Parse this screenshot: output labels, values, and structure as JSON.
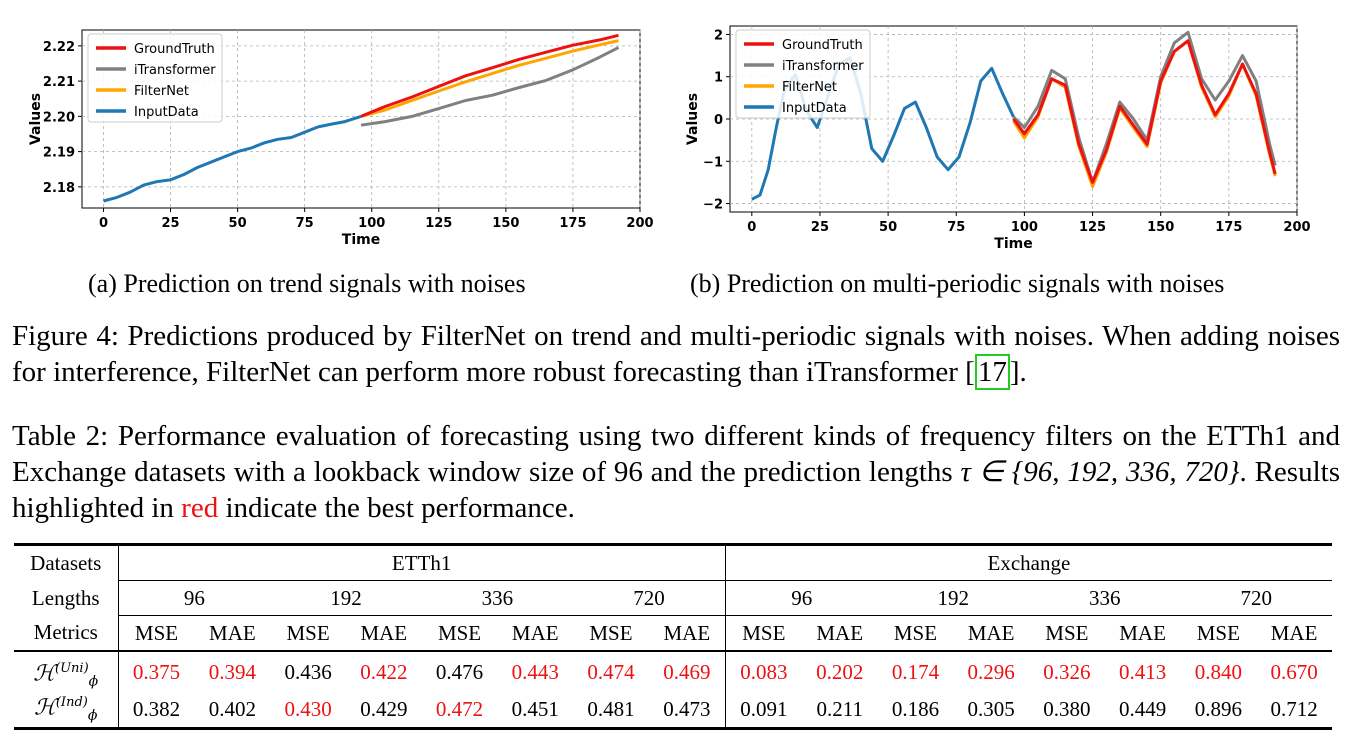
{
  "chart_data": [
    {
      "type": "line",
      "xlabel": "Time",
      "ylabel": "Values",
      "xlim": [
        -8,
        200
      ],
      "ylim": [
        2.174,
        2.2245
      ],
      "xticks": [
        "0",
        "25",
        "50",
        "75",
        "100",
        "125",
        "150",
        "175",
        "200"
      ],
      "yticks": [
        "2.18",
        "2.19",
        "2.20",
        "2.21",
        "2.22"
      ],
      "grid": true,
      "legend_position": "top-left",
      "series": [
        {
          "name": "GroundTruth",
          "color": "#ee1111",
          "x": [
            96,
            105,
            115,
            125,
            135,
            145,
            155,
            165,
            175,
            185,
            192
          ],
          "y": [
            2.2,
            2.2028,
            2.2055,
            2.2085,
            2.2115,
            2.2138,
            2.2162,
            2.2182,
            2.2202,
            2.2217,
            2.223
          ]
        },
        {
          "name": "iTransformer",
          "color": "#808080",
          "x": [
            96,
            105,
            115,
            125,
            135,
            145,
            155,
            165,
            175,
            185,
            192
          ],
          "y": [
            2.1975,
            2.1985,
            2.2,
            2.2022,
            2.2045,
            2.206,
            2.2082,
            2.2102,
            2.2132,
            2.2168,
            2.2195
          ]
        },
        {
          "name": "FilterNet",
          "color": "#ffa500",
          "x": [
            96,
            105,
            115,
            125,
            135,
            145,
            155,
            165,
            175,
            185,
            192
          ],
          "y": [
            2.2,
            2.2018,
            2.2045,
            2.2072,
            2.2098,
            2.2122,
            2.2145,
            2.2165,
            2.2185,
            2.2203,
            2.2215
          ]
        },
        {
          "name": "InputData",
          "color": "#1f77b4",
          "x": [
            0,
            5,
            10,
            15,
            20,
            25,
            30,
            35,
            40,
            45,
            50,
            55,
            60,
            65,
            70,
            75,
            80,
            85,
            90,
            96
          ],
          "y": [
            2.176,
            2.177,
            2.1785,
            2.1805,
            2.1815,
            2.182,
            2.1835,
            2.1855,
            2.187,
            2.1885,
            2.19,
            2.191,
            2.1925,
            2.1935,
            2.194,
            2.1955,
            2.197,
            2.1978,
            2.1985,
            2.2
          ]
        }
      ]
    },
    {
      "type": "line",
      "xlabel": "Time",
      "ylabel": "Values",
      "xlim": [
        -8,
        200
      ],
      "ylim": [
        -2.2,
        2.2
      ],
      "xticks": [
        "0",
        "25",
        "50",
        "75",
        "100",
        "125",
        "150",
        "175",
        "200"
      ],
      "yticks": [
        "−2",
        "−1",
        "0",
        "1",
        "2"
      ],
      "grid": true,
      "legend_position": "top-left",
      "series": [
        {
          "name": "GroundTruth",
          "color": "#ee1111",
          "x": [
            96,
            100,
            105,
            110,
            115,
            120,
            125,
            130,
            135,
            140,
            145,
            150,
            155,
            160,
            165,
            170,
            175,
            180,
            185,
            190,
            192
          ],
          "y": [
            0,
            -0.35,
            0.1,
            0.95,
            0.8,
            -0.6,
            -1.5,
            -0.75,
            0.3,
            -0.15,
            -0.6,
            0.9,
            1.6,
            1.85,
            0.8,
            0.1,
            0.6,
            1.3,
            0.6,
            -0.8,
            -1.3
          ]
        },
        {
          "name": "iTransformer",
          "color": "#808080",
          "x": [
            96,
            100,
            105,
            110,
            115,
            120,
            125,
            130,
            135,
            140,
            145,
            150,
            155,
            160,
            165,
            170,
            175,
            180,
            185,
            190,
            192
          ],
          "y": [
            0.05,
            -0.2,
            0.3,
            1.15,
            0.95,
            -0.45,
            -1.5,
            -0.6,
            0.4,
            0.0,
            -0.5,
            1.0,
            1.8,
            2.05,
            0.95,
            0.45,
            0.9,
            1.5,
            0.9,
            -0.6,
            -1.1
          ]
        },
        {
          "name": "FilterNet",
          "color": "#ffa500",
          "x": [
            96,
            100,
            105,
            110,
            115,
            120,
            125,
            130,
            135,
            140,
            145,
            150,
            155,
            160,
            165,
            170,
            175,
            180,
            185,
            190,
            192
          ],
          "y": [
            -0.05,
            -0.45,
            0.05,
            0.95,
            0.75,
            -0.65,
            -1.6,
            -0.8,
            0.25,
            -0.2,
            -0.65,
            0.85,
            1.6,
            1.85,
            0.75,
            0.05,
            0.55,
            1.3,
            0.55,
            -0.85,
            -1.35
          ]
        },
        {
          "name": "InputData",
          "color": "#1f77b4",
          "x": [
            0,
            3,
            6,
            9,
            12,
            16,
            20,
            24,
            28,
            32,
            36,
            40,
            44,
            48,
            52,
            56,
            60,
            64,
            68,
            72,
            76,
            80,
            84,
            88,
            92,
            96
          ],
          "y": [
            -1.9,
            -1.8,
            -1.2,
            -0.2,
            0.7,
            1.05,
            0.2,
            -0.2,
            0.55,
            1.3,
            1.45,
            0.6,
            -0.7,
            -1.0,
            -0.4,
            0.25,
            0.4,
            -0.2,
            -0.9,
            -1.2,
            -0.9,
            -0.1,
            0.9,
            1.2,
            0.6,
            0.05
          ]
        }
      ]
    }
  ],
  "subcaptions": [
    "(a) Prediction on trend signals with noises",
    "(b) Prediction on multi-periodic signals with noises"
  ],
  "figure_caption": {
    "text": "Figure 4: Predictions produced by FilterNet on trend and multi-periodic signals with noises. When adding noises for interference, FilterNet can perform more robust forecasting than iTransformer [",
    "ref": "17",
    "end": "]."
  },
  "table_caption": {
    "part1": "Table 2: Performance evaluation of forecasting using two different kinds of frequency filters on the ETTh1 and Exchange datasets with a lookback window size of 96 and the prediction lengths ",
    "math": "τ ∈ {96, 192, 336, 720}",
    "part2": ". Results highlighted in ",
    "red_word": "red",
    "part3": " indicate the best performance."
  },
  "table": {
    "datasets_label": "Datasets",
    "lengths_label": "Lengths",
    "metrics_label": "Metrics",
    "datasets": [
      "ETTh1",
      "Exchange"
    ],
    "lengths": [
      "96",
      "192",
      "336",
      "720",
      "96",
      "192",
      "336",
      "720"
    ],
    "metrics": [
      "MSE",
      "MAE"
    ],
    "red_color": "#ee1111",
    "rows": [
      {
        "label_main": "ℋ",
        "label_sup": "(Uni)",
        "label_sub": "ϕ",
        "values": [
          "0.375",
          "0.394",
          "0.436",
          "0.422",
          "0.476",
          "0.443",
          "0.474",
          "0.469",
          "0.083",
          "0.202",
          "0.174",
          "0.296",
          "0.326",
          "0.413",
          "0.840",
          "0.670"
        ],
        "best": [
          true,
          true,
          false,
          true,
          false,
          true,
          true,
          true,
          true,
          true,
          true,
          true,
          true,
          true,
          true,
          true
        ]
      },
      {
        "label_main": "ℋ",
        "label_sup": "(Ind)",
        "label_sub": "ϕ",
        "values": [
          "0.382",
          "0.402",
          "0.430",
          "0.429",
          "0.472",
          "0.451",
          "0.481",
          "0.473",
          "0.091",
          "0.211",
          "0.186",
          "0.305",
          "0.380",
          "0.449",
          "0.896",
          "0.712"
        ],
        "best": [
          false,
          false,
          true,
          false,
          true,
          false,
          false,
          false,
          false,
          false,
          false,
          false,
          false,
          false,
          false,
          false
        ]
      }
    ]
  }
}
